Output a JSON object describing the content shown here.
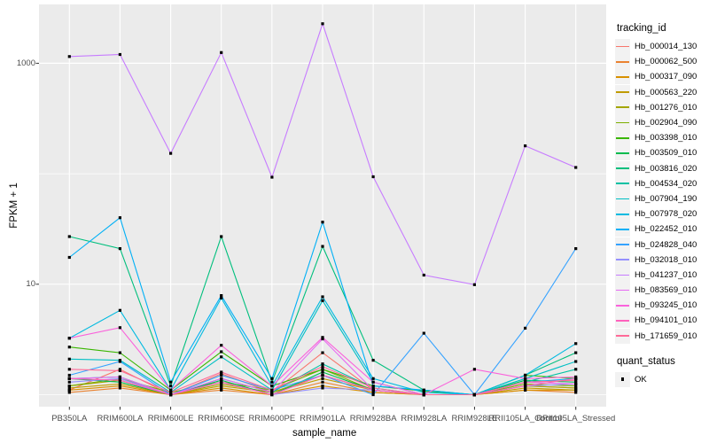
{
  "chart_data": {
    "type": "line",
    "title": "",
    "xlabel": "sample_name",
    "ylabel": "FPKM + 1",
    "y_scale": "log10",
    "y_axis_ticks": [
      {
        "value": 1000,
        "label": "1000"
      },
      {
        "value": 10,
        "label": "10"
      }
    ],
    "y_gridlines_major": [
      10,
      1000
    ],
    "y_gridlines_minor": [
      1,
      100
    ],
    "ylim": [
      0.8,
      3400
    ],
    "grid": true,
    "legend_position": "right",
    "categories": [
      "PB350LA",
      "RRIM600LA",
      "RRIM600LE",
      "RRIM600SE",
      "RRIM600PE",
      "RRIM901LA",
      "RRIM928BA",
      "RRIM928LA",
      "RRIM928LE",
      "RRII105LA_Control",
      "RRII105LA_Stressed"
    ],
    "series": [
      {
        "name": "Hb_000014_130",
        "color": "#F8766D",
        "values": [
          1.1,
          1.7,
          1.0,
          1.55,
          1.05,
          2.4,
          1.1,
          1.0,
          1.0,
          1.2,
          1.15
        ]
      },
      {
        "name": "Hb_000062_500",
        "color": "#EA8331",
        "values": [
          1.05,
          1.15,
          1.0,
          1.1,
          1.0,
          1.3,
          1.05,
          1.0,
          1.0,
          1.1,
          1.05
        ]
      },
      {
        "name": "Hb_000317_090",
        "color": "#D89000",
        "values": [
          1.1,
          1.2,
          1.0,
          1.15,
          1.0,
          1.2,
          1.05,
          1.0,
          1.0,
          1.1,
          1.1
        ]
      },
      {
        "name": "Hb_000563_220",
        "color": "#C09B00",
        "values": [
          1.15,
          1.25,
          1.0,
          1.2,
          1.05,
          1.4,
          1.1,
          1.0,
          1.0,
          1.15,
          1.1
        ]
      },
      {
        "name": "Hb_001276_010",
        "color": "#A3A500",
        "values": [
          1.2,
          1.35,
          1.0,
          1.25,
          1.05,
          1.5,
          1.1,
          1.0,
          1.0,
          1.2,
          1.15
        ]
      },
      {
        "name": "Hb_002904_090",
        "color": "#7CAE00",
        "values": [
          1.2,
          1.4,
          1.05,
          1.3,
          1.1,
          1.7,
          1.1,
          1.0,
          1.0,
          1.25,
          1.2
        ]
      },
      {
        "name": "Hb_003398_010",
        "color": "#39B600",
        "values": [
          2.7,
          2.4,
          1.1,
          2.45,
          1.2,
          1.7,
          1.2,
          1.08,
          1.0,
          1.5,
          1.4
        ]
      },
      {
        "name": "Hb_003509_010",
        "color": "#00BB4E",
        "values": [
          1.4,
          1.3,
          1.0,
          1.35,
          1.0,
          1.6,
          1.1,
          1.0,
          1.0,
          1.35,
          1.3
        ]
      },
      {
        "name": "Hb_003816_020",
        "color": "#00BF7D",
        "values": [
          27,
          21,
          1.2,
          27,
          1.3,
          22,
          2.05,
          1.1,
          1.0,
          1.5,
          2.4
        ]
      },
      {
        "name": "Hb_004534_020",
        "color": "#00C1A3",
        "values": [
          1.4,
          1.45,
          1.0,
          1.4,
          1.05,
          1.9,
          1.15,
          1.0,
          1.0,
          1.3,
          1.7
        ]
      },
      {
        "name": "Hb_007904_190",
        "color": "#00BFC4",
        "values": [
          2.1,
          2.05,
          1.05,
          2.2,
          1.1,
          7.1,
          1.3,
          1.0,
          1.0,
          1.4,
          2.0
        ]
      },
      {
        "name": "Hb_007978_020",
        "color": "#00BAE0",
        "values": [
          3.25,
          5.8,
          1.1,
          7.5,
          1.2,
          7.7,
          1.4,
          1.05,
          1.0,
          1.5,
          2.9
        ]
      },
      {
        "name": "Hb_022452_010",
        "color": "#00B0F6",
        "values": [
          17.5,
          40,
          1.3,
          7.9,
          1.4,
          36.5,
          1.2,
          1.1,
          1.0,
          1.3,
          1.4
        ]
      },
      {
        "name": "Hb_024828_040",
        "color": "#35A2FF",
        "values": [
          1.5,
          2.0,
          1.0,
          1.5,
          1.1,
          1.5,
          1.0,
          3.6,
          1.0,
          4.0,
          21
        ]
      },
      {
        "name": "Hb_032018_010",
        "color": "#9590FF",
        "values": [
          1.3,
          1.4,
          1.0,
          1.3,
          1.0,
          1.15,
          1.1,
          1.0,
          1.0,
          1.2,
          1.25
        ]
      },
      {
        "name": "Hb_041237_010",
        "color": "#C77CFF",
        "values": [
          1150,
          1200,
          153,
          1250,
          93,
          2280,
          94,
          12.1,
          9.9,
          179,
          114
        ]
      },
      {
        "name": "Hb_083569_010",
        "color": "#E76BF3",
        "values": [
          1.4,
          1.45,
          1.0,
          1.4,
          1.05,
          3.2,
          1.1,
          1.0,
          1.0,
          1.3,
          1.25
        ]
      },
      {
        "name": "Hb_093245_010",
        "color": "#FA62DB",
        "values": [
          3.25,
          4.05,
          1.1,
          2.8,
          1.2,
          3.3,
          1.3,
          1.0,
          1.7,
          1.4,
          1.45
        ]
      },
      {
        "name": "Hb_094101_010",
        "color": "#FF62BC",
        "values": [
          1.4,
          1.35,
          1.0,
          1.3,
          1.0,
          1.5,
          1.1,
          1.0,
          1.0,
          1.2,
          1.4
        ]
      },
      {
        "name": "Hb_171659_010",
        "color": "#FF6A98",
        "values": [
          1.7,
          1.65,
          1.05,
          1.6,
          1.1,
          1.8,
          1.15,
          1.0,
          1.0,
          1.3,
          1.35
        ]
      }
    ],
    "point_marker": {
      "shape": "square",
      "color": "#000000"
    }
  },
  "legend": {
    "tracking_title": "tracking_id",
    "quant_title": "quant_status",
    "quant_items": [
      {
        "label": "OK"
      }
    ]
  },
  "colors": {
    "panel_bg": "#EBEBEB",
    "gridline": "#FFFFFF",
    "tick_mark": "#333333",
    "tick_text": "#4D4D4D",
    "legend_key_bg": "#F2F2F2"
  }
}
